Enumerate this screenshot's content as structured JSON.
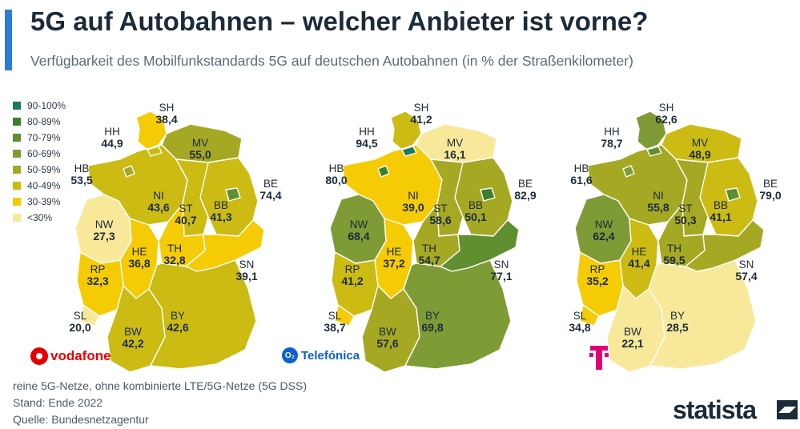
{
  "title": "5G auf Autobahnen – welcher Anbieter ist vorne?",
  "subtitle": "Verfügbarkeit des Mobilfunkstandards 5G auf deutschen Autobahnen (in % der Straßenkilometer)",
  "legend": [
    {
      "label": "90-100%",
      "color": "#1a7a5e"
    },
    {
      "label": "80-89%",
      "color": "#3d7f2e"
    },
    {
      "label": "70-79%",
      "color": "#5f8f2e"
    },
    {
      "label": "60-69%",
      "color": "#7e9b35"
    },
    {
      "label": "50-59%",
      "color": "#a5a823"
    },
    {
      "label": "40-49%",
      "color": "#cbbb12"
    },
    {
      "label": "30-39%",
      "color": "#f5cb05"
    },
    {
      "label": "<30%",
      "color": "#f8e89a"
    }
  ],
  "maps": [
    {
      "provider": "Vodafone",
      "regions": [
        {
          "code": "SH",
          "value": 38.4
        },
        {
          "code": "HH",
          "value": 44.9
        },
        {
          "code": "MV",
          "value": 55.0
        },
        {
          "code": "HB",
          "value": 53.5
        },
        {
          "code": "BE",
          "value": 74.4
        },
        {
          "code": "NI",
          "value": 43.6
        },
        {
          "code": "ST",
          "value": 40.7
        },
        {
          "code": "BB",
          "value": 41.3
        },
        {
          "code": "NW",
          "value": 27.3
        },
        {
          "code": "HE",
          "value": 36.8
        },
        {
          "code": "TH",
          "value": 32.8
        },
        {
          "code": "SN",
          "value": 39.1
        },
        {
          "code": "RP",
          "value": 32.3
        },
        {
          "code": "SL",
          "value": 20.0
        },
        {
          "code": "BW",
          "value": 42.2
        },
        {
          "code": "BY",
          "value": 42.6
        }
      ]
    },
    {
      "provider": "Telefónica",
      "regions": [
        {
          "code": "SH",
          "value": 41.2
        },
        {
          "code": "HH",
          "value": 94.5
        },
        {
          "code": "MV",
          "value": 16.1
        },
        {
          "code": "HB",
          "value": 80.0
        },
        {
          "code": "BE",
          "value": 82.9
        },
        {
          "code": "NI",
          "value": 39.0
        },
        {
          "code": "ST",
          "value": 58.6
        },
        {
          "code": "BB",
          "value": 50.1
        },
        {
          "code": "NW",
          "value": 68.4
        },
        {
          "code": "HE",
          "value": 37.2
        },
        {
          "code": "TH",
          "value": 54.7
        },
        {
          "code": "SN",
          "value": 77.1
        },
        {
          "code": "RP",
          "value": 41.2
        },
        {
          "code": "SL",
          "value": 38.7
        },
        {
          "code": "BW",
          "value": 57.6
        },
        {
          "code": "BY",
          "value": 69.8
        }
      ]
    },
    {
      "provider": "Telekom",
      "regions": [
        {
          "code": "SH",
          "value": 62.6
        },
        {
          "code": "HH",
          "value": 78.7
        },
        {
          "code": "MV",
          "value": 48.9
        },
        {
          "code": "HB",
          "value": 61.6
        },
        {
          "code": "BE",
          "value": 79.0
        },
        {
          "code": "NI",
          "value": 55.8
        },
        {
          "code": "ST",
          "value": 50.3
        },
        {
          "code": "BB",
          "value": 41.1
        },
        {
          "code": "NW",
          "value": 62.4
        },
        {
          "code": "HE",
          "value": 41.4
        },
        {
          "code": "TH",
          "value": 59.5
        },
        {
          "code": "SN",
          "value": 57.4
        },
        {
          "code": "RP",
          "value": 35.2
        },
        {
          "code": "SL",
          "value": 34.8
        },
        {
          "code": "BW",
          "value": 22.1
        },
        {
          "code": "BY",
          "value": 28.5
        }
      ]
    }
  ],
  "logos": {
    "vodafone": "vodafone",
    "telefonica": "Telefónica",
    "telefonica_mark": "O₂"
  },
  "footer": {
    "note": "reine 5G-Netze, ohne kombinierte LTE/5G-Netze (5G DSS)",
    "date": "Stand: Ende 2022",
    "source": "Quelle: Bundesnetzagentur"
  },
  "brand": "statista"
}
